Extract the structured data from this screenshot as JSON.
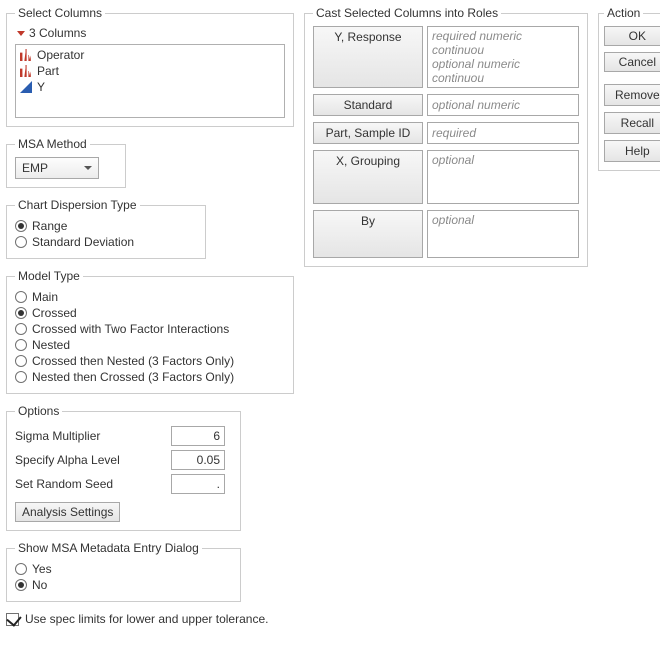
{
  "select_columns": {
    "legend": "Select Columns",
    "count_label": "3 Columns",
    "items": [
      {
        "icon": "nominal",
        "label": "Operator"
      },
      {
        "icon": "nominal",
        "label": "Part"
      },
      {
        "icon": "continuous",
        "label": "Y"
      }
    ]
  },
  "msa_method": {
    "legend": "MSA Method",
    "value": "EMP"
  },
  "dispersion": {
    "legend": "Chart Dispersion Type",
    "options": [
      "Range",
      "Standard Deviation"
    ],
    "selected_index": 0
  },
  "model_type": {
    "legend": "Model Type",
    "options": [
      "Main",
      "Crossed",
      "Crossed with Two Factor Interactions",
      "Nested",
      "Crossed then Nested (3 Factors Only)",
      "Nested then Crossed (3 Factors Only)"
    ],
    "selected_index": 1
  },
  "options": {
    "legend": "Options",
    "sigma_label": "Sigma Multiplier",
    "sigma_value": "6",
    "alpha_label": "Specify Alpha Level",
    "alpha_value": "0.05",
    "seed_label": "Set Random Seed",
    "seed_value": ".",
    "analysis_btn": "Analysis Settings"
  },
  "metadata_dialog": {
    "legend": "Show MSA Metadata Entry Dialog",
    "options": [
      "Yes",
      "No"
    ],
    "selected_index": 1
  },
  "spec_limits": {
    "checked": true,
    "label": "Use spec limits for lower and upper tolerance."
  },
  "roles": {
    "legend": "Cast Selected Columns into Roles",
    "rows": [
      {
        "btn": "Y, Response",
        "lines": [
          "required numeric continuou",
          "optional numeric continuou"
        ],
        "height": "tall"
      },
      {
        "btn": "Standard",
        "lines": [
          "optional numeric"
        ],
        "height": ""
      },
      {
        "btn": "Part, Sample ID",
        "lines": [
          "required"
        ],
        "height": ""
      },
      {
        "btn": "X, Grouping",
        "lines": [
          "optional"
        ],
        "height": "tall2"
      },
      {
        "btn": "By",
        "lines": [
          "optional"
        ],
        "height": "tall"
      }
    ]
  },
  "actions": {
    "legend": "Action",
    "ok": "OK",
    "cancel": "Cancel",
    "remove": "Remove",
    "recall": "Recall",
    "help": "Help"
  }
}
